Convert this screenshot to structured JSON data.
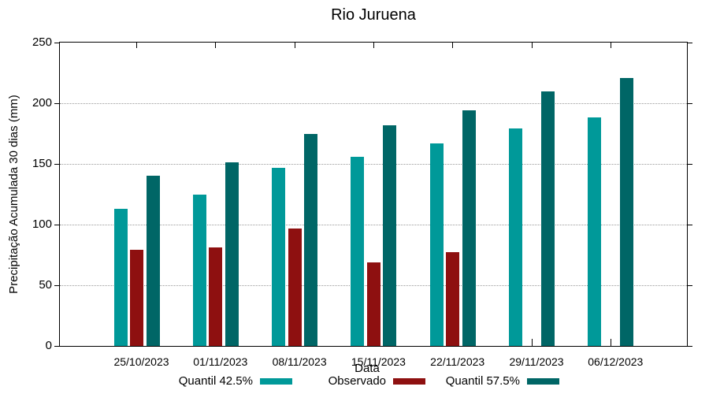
{
  "chart_data": {
    "type": "bar",
    "title": "Rio Juruena",
    "xlabel": "Data",
    "ylabel": "Precipitação Acumulada 30 dias (mm)",
    "categories": [
      "25/10/2023",
      "01/11/2023",
      "08/11/2023",
      "15/11/2023",
      "22/11/2023",
      "29/11/2023",
      "06/12/2023"
    ],
    "series": [
      {
        "name": "Quantil 42.5%",
        "color": "#009999",
        "values": [
          113,
          125,
          147,
          156,
          167,
          179,
          188
        ]
      },
      {
        "name": "Observado",
        "color": "#8e1010",
        "values": [
          79,
          81,
          97,
          69,
          77,
          null,
          null
        ]
      },
      {
        "name": "Quantil 57.5%",
        "color": "#006666",
        "values": [
          140,
          151,
          175,
          182,
          194,
          210,
          221
        ]
      }
    ],
    "ylim": [
      0,
      250
    ],
    "yticks": [
      0,
      50,
      100,
      150,
      200,
      250
    ],
    "grid": "horizontal dotted at interior yticks",
    "legend_position": "bottom"
  },
  "style_colors": {
    "gridline": "#9a9a9a",
    "axis": "#000000",
    "background": "#ffffff"
  }
}
